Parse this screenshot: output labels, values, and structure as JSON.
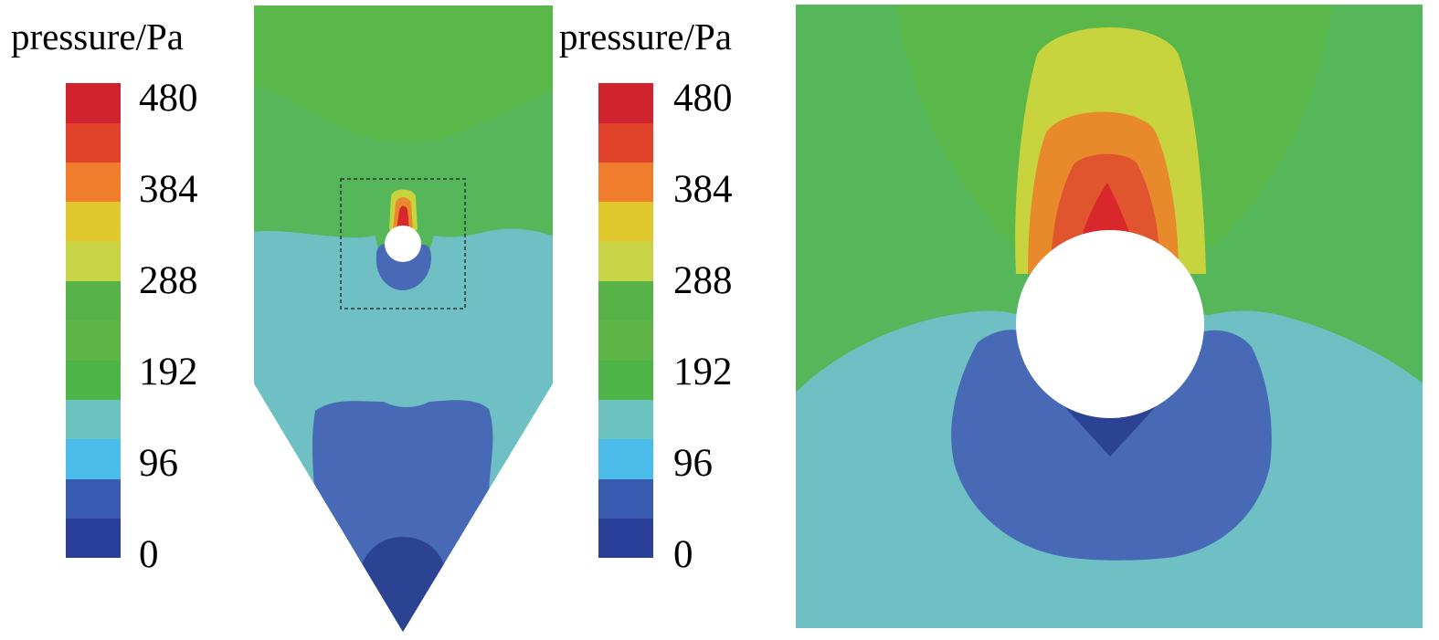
{
  "colorbars": [
    {
      "title": "pressure/Pa",
      "ticks": [
        "480",
        "384",
        "288",
        "192",
        "96",
        "0"
      ]
    },
    {
      "title": "pressure/Pa",
      "ticks": [
        "480",
        "384",
        "288",
        "192",
        "96",
        "0"
      ]
    }
  ],
  "color_levels": [
    "#2a3f98",
    "#3a5cb0",
    "#4cbdea",
    "#6cc3c0",
    "#4db548",
    "#5eb445",
    "#57b248",
    "#c6d445",
    "#e0c92e",
    "#ef7d2b",
    "#e0432a",
    "#d0232d"
  ],
  "field_colors": {
    "background_green": "#5ab84b",
    "upper_green": "#55b65a",
    "teal": "#6ec0c4",
    "blue": "#4769b6",
    "dark_blue": "#2c4393",
    "yellow_green": "#c8d43e",
    "orange": "#e88a2c",
    "red_orange": "#e0552d",
    "red": "#d8282c",
    "cylinder": "#ffffff"
  }
}
